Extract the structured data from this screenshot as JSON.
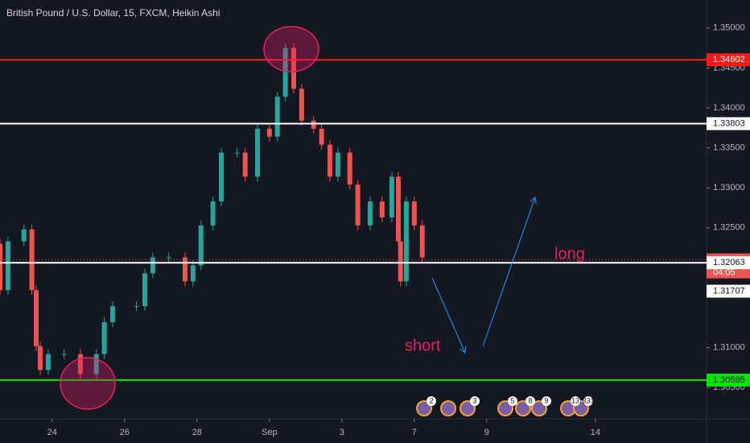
{
  "chart_data": {
    "type": "candlestick",
    "title": "British Pound / U.S. Dollar, 15, FXCM, Heikin Ashi",
    "x": [
      -1.44,
      -1.22,
      -0.78,
      -0.56,
      -0.44,
      -0.33,
      -0.11,
      0.33,
      0.78,
      1.22,
      1.44,
      1.67,
      2.33,
      2.56,
      2.78,
      3.22,
      3.67,
      3.89,
      4.11,
      4.44,
      4.67,
      5.11,
      5.33,
      5.67,
      6,
      6.22,
      6.44,
      6.67,
      6.89,
      7.22,
      7.44,
      7.67,
      7.89,
      8.22,
      8.44,
      8.78,
      9.11,
      9.38,
      9.56,
      9.62,
      9.78,
      10,
      10.22
    ],
    "open": [
      1.323,
      1.3172,
      1.3233,
      1.3248,
      1.3172,
      1.3102,
      1.3072,
      1.3092,
      1.3092,
      1.3067,
      1.3092,
      1.3132,
      1.3152,
      1.3152,
      1.3193,
      1.3213,
      1.3213,
      1.3183,
      1.3203,
      1.3253,
      1.3283,
      1.3344,
      1.3344,
      1.3314,
      1.3374,
      1.3364,
      1.3414,
      1.3475,
      1.3424,
      1.3384,
      1.3374,
      1.3354,
      1.3314,
      1.3344,
      1.3304,
      1.3253,
      1.3283,
      1.3263,
      1.3314,
      1.3233,
      1.3183,
      1.3283,
      1.3253
    ],
    "high": [
      1.3236,
      1.3239,
      1.3254,
      1.3254,
      1.3178,
      1.3108,
      1.3098,
      1.3098,
      1.3098,
      1.3098,
      1.3138,
      1.3158,
      1.3158,
      1.3199,
      1.3219,
      1.3219,
      1.3219,
      1.3209,
      1.3259,
      1.3289,
      1.335,
      1.335,
      1.335,
      1.338,
      1.338,
      1.342,
      1.3481,
      1.3481,
      1.343,
      1.339,
      1.338,
      1.336,
      1.335,
      1.335,
      1.331,
      1.3289,
      1.3289,
      1.332,
      1.332,
      1.3239,
      1.3289,
      1.3289,
      1.3259
    ],
    "low": [
      1.3166,
      1.3166,
      1.3227,
      1.3166,
      1.3096,
      1.3066,
      1.3066,
      1.3086,
      1.3061,
      1.3061,
      1.3086,
      1.3126,
      1.3146,
      1.3146,
      1.3187,
      1.3207,
      1.3177,
      1.3177,
      1.3197,
      1.3247,
      1.3277,
      1.3338,
      1.3308,
      1.3308,
      1.3358,
      1.3358,
      1.3408,
      1.3418,
      1.3378,
      1.3368,
      1.3348,
      1.3308,
      1.3308,
      1.3298,
      1.3247,
      1.3247,
      1.3257,
      1.3257,
      1.3227,
      1.3177,
      1.3177,
      1.3247,
      1.3207
    ],
    "close": [
      1.3172,
      1.3233,
      1.3248,
      1.3172,
      1.3102,
      1.3072,
      1.3092,
      1.3092,
      1.3067,
      1.3092,
      1.3132,
      1.3152,
      1.3152,
      1.3193,
      1.3213,
      1.3213,
      1.3183,
      1.3203,
      1.3253,
      1.3283,
      1.3344,
      1.3344,
      1.3314,
      1.3374,
      1.3364,
      1.3414,
      1.3475,
      1.3424,
      1.3384,
      1.3374,
      1.3354,
      1.3314,
      1.3344,
      1.3304,
      1.3253,
      1.3283,
      1.3263,
      1.3314,
      1.3233,
      1.3183,
      1.3283,
      1.3253,
      1.3213
    ],
    "up_color": "#26a69a",
    "down_color": "#ef5350",
    "xlim": [
      -1.44,
      18.07
    ],
    "xticks": [
      {
        "value": 0,
        "label": "24"
      },
      {
        "value": 2,
        "label": "26"
      },
      {
        "value": 4,
        "label": "28"
      },
      {
        "value": 6,
        "label": "Sep"
      },
      {
        "value": 8,
        "label": "3"
      },
      {
        "value": 10,
        "label": "7"
      },
      {
        "value": 12,
        "label": "9"
      },
      {
        "value": 15,
        "label": "14"
      }
    ],
    "ylim": [
      1.3011,
      1.3535
    ],
    "yticks": [
      {
        "value": 1.35,
        "label": "1.35000"
      },
      {
        "value": 1.345,
        "label": "1.34500"
      },
      {
        "value": 1.34,
        "label": "1.34000"
      },
      {
        "value": 1.335,
        "label": "1.33500"
      },
      {
        "value": 1.33,
        "label": "1.33000"
      },
      {
        "value": 1.325,
        "label": "1.32500"
      },
      {
        "value": 1.31,
        "label": "1.31000"
      },
      {
        "value": 1.305,
        "label": "1.30500"
      }
    ],
    "levels": [
      {
        "value": 1.34602,
        "color": "#ff1a1a",
        "text_color": "#ffffff",
        "style": "solid"
      },
      {
        "value": 1.33803,
        "color": "#ffffff",
        "text_color": "#131722",
        "style": "solid"
      },
      {
        "value": 1.32099,
        "color": "#ef5350",
        "text_color": "#ffffff",
        "style": "dotted"
      },
      {
        "value": 1.32063,
        "color": "#ffffff",
        "text_color": "#131722",
        "style": "solid"
      },
      {
        "value": 1.31707,
        "color": "#ffffff",
        "text_color": "#131722",
        "style": "none"
      },
      {
        "value": 1.30595,
        "color": "#00e600",
        "text_color": "#131722",
        "style": "solid"
      }
    ],
    "countdown": "04:05",
    "annotations": [
      "long",
      "short"
    ],
    "events": [
      "2",
      "3",
      "5",
      "8",
      "9",
      "13",
      "331"
    ]
  }
}
